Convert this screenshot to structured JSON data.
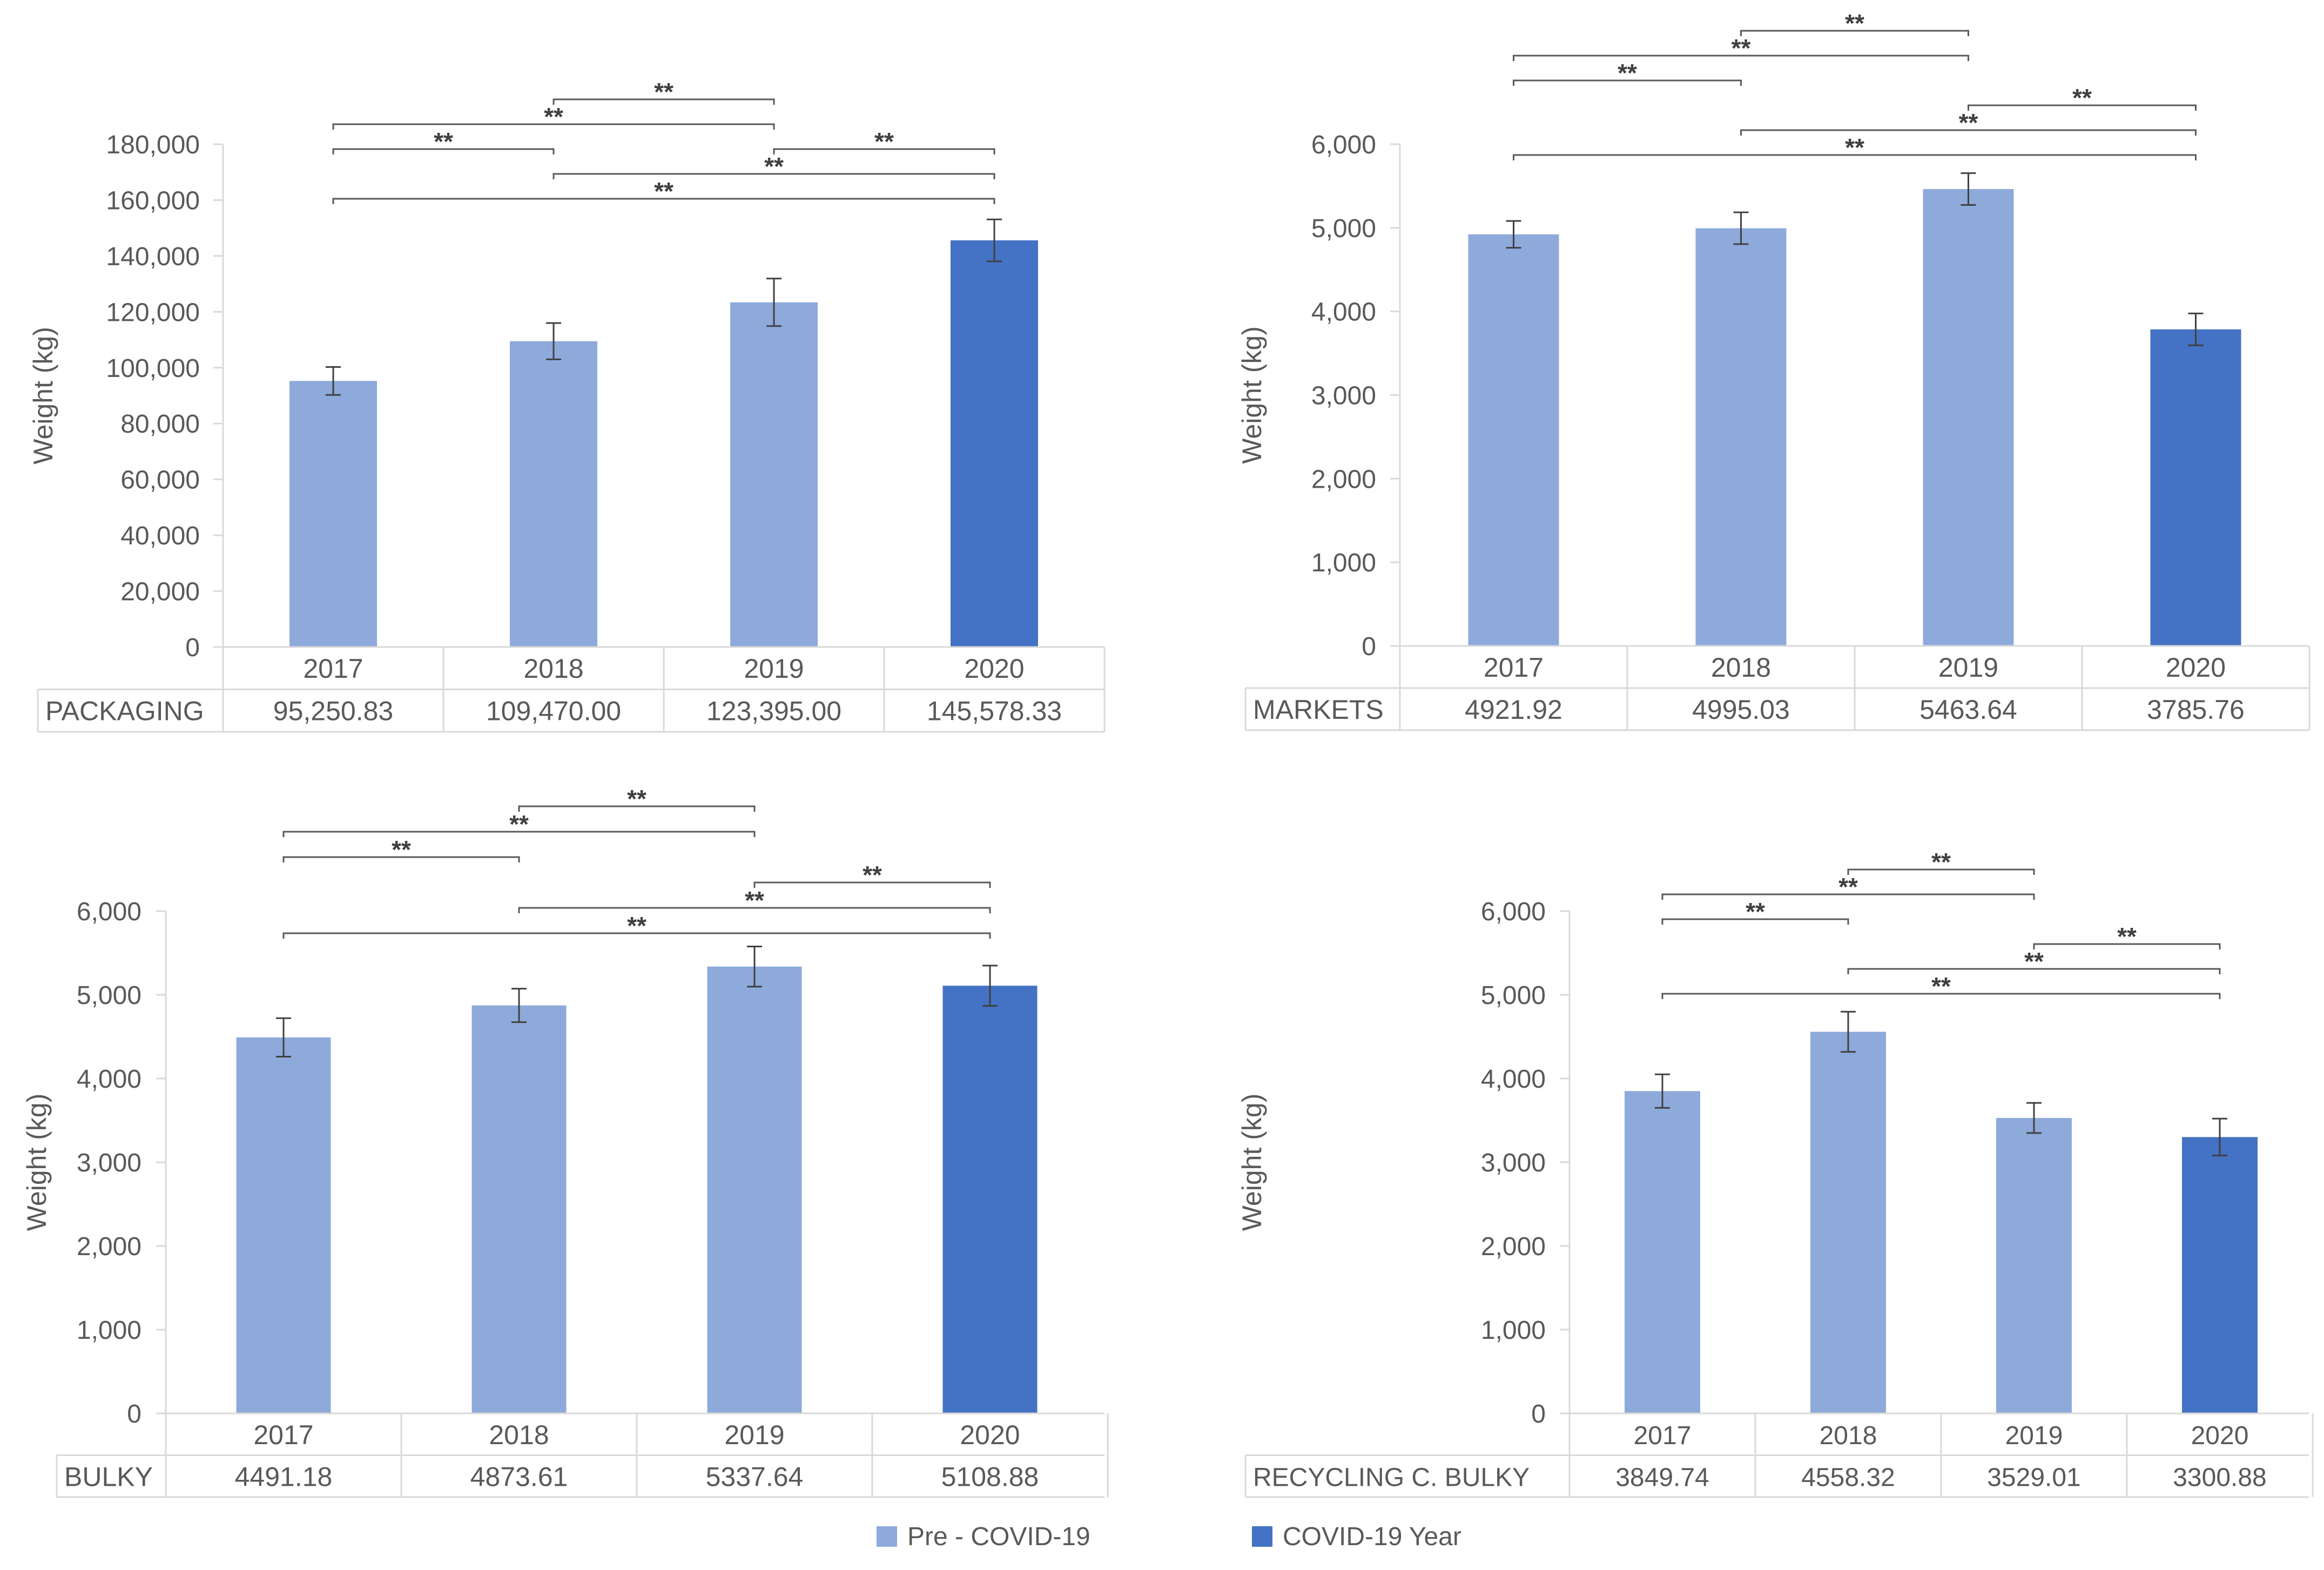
{
  "colors": {
    "pre": "#8eaadb",
    "covid": "#4472c4",
    "axis": "#d9d9d9",
    "text": "#595959",
    "bracket": "#595959"
  },
  "legend": [
    {
      "label": "Pre - COVID-19",
      "color": "#8eaadb"
    },
    {
      "label": "COVID-19 Year",
      "color": "#4472c4"
    }
  ],
  "chart_data": [
    {
      "type": "bar",
      "position": "top-left",
      "ylabel": "Weight (kg)",
      "ylim": [
        0,
        180000
      ],
      "yticks": [
        "0",
        "20,000",
        "40,000",
        "60,000",
        "80,000",
        "100,000",
        "120,000",
        "140,000",
        "160,000",
        "180,000"
      ],
      "categories": [
        "2017",
        "2018",
        "2019",
        "2020"
      ],
      "values": [
        95250.83,
        109470.0,
        123395.0,
        145578.33
      ],
      "errors": [
        5000,
        6500,
        8500,
        7500
      ],
      "covid": [
        false,
        false,
        false,
        true
      ],
      "table_label": "PACKAGING",
      "table_values": [
        "95,250.83",
        "109,470.00",
        "123,395.00",
        "145,578.33"
      ],
      "brackets": [
        {
          "from": 1,
          "to": 2,
          "level": 4,
          "label": "**"
        },
        {
          "from": 0,
          "to": 2,
          "level": 3,
          "label": "**"
        },
        {
          "from": 0,
          "to": 1,
          "level": 2,
          "label": "**"
        },
        {
          "from": 2,
          "to": 3,
          "level": 2,
          "label": "**"
        },
        {
          "from": 1,
          "to": 3,
          "level": 1,
          "label": "**"
        },
        {
          "from": 0,
          "to": 3,
          "level": 0,
          "label": "**"
        }
      ]
    },
    {
      "type": "bar",
      "position": "top-right",
      "ylabel": "Weight (kg)",
      "ylim": [
        0,
        6000
      ],
      "yticks": [
        "0",
        "1,000",
        "2,000",
        "3,000",
        "4,000",
        "5,000",
        "6,000"
      ],
      "categories": [
        "2017",
        "2018",
        "2019",
        "2020"
      ],
      "values": [
        4921.92,
        4995.03,
        5463.64,
        3785.76
      ],
      "errors": [
        160,
        190,
        190,
        190
      ],
      "covid": [
        false,
        false,
        false,
        true
      ],
      "table_label": "MARKETS",
      "table_values": [
        "4921.92",
        "4995.03",
        "5463.64",
        "3785.76"
      ],
      "brackets": [
        {
          "from": 1,
          "to": 2,
          "level": 5,
          "label": "**"
        },
        {
          "from": 0,
          "to": 2,
          "level": 4,
          "label": "**"
        },
        {
          "from": 0,
          "to": 1,
          "level": 3,
          "label": "**"
        },
        {
          "from": 2,
          "to": 3,
          "level": 2,
          "label": "**"
        },
        {
          "from": 1,
          "to": 3,
          "level": 1,
          "label": "**"
        },
        {
          "from": 0,
          "to": 3,
          "level": 0,
          "label": "**"
        }
      ]
    },
    {
      "type": "bar",
      "position": "bottom-left",
      "ylabel": "Weight (kg)",
      "ylim": [
        0,
        6000
      ],
      "yticks": [
        "0",
        "1,000",
        "2,000",
        "3,000",
        "4,000",
        "5,000",
        "6,000"
      ],
      "categories": [
        "2017",
        "2018",
        "2019",
        "2020"
      ],
      "values": [
        4491.18,
        4873.61,
        5337.64,
        5108.88
      ],
      "errors": [
        230,
        200,
        240,
        240
      ],
      "covid": [
        false,
        false,
        false,
        true
      ],
      "table_label": "BULKY",
      "table_values": [
        "4491.18",
        "4873.61",
        "5337.64",
        "5108.88"
      ],
      "brackets": [
        {
          "from": 1,
          "to": 2,
          "level": 5,
          "label": "**"
        },
        {
          "from": 0,
          "to": 2,
          "level": 4,
          "label": "**"
        },
        {
          "from": 0,
          "to": 1,
          "level": 3,
          "label": "**"
        },
        {
          "from": 2,
          "to": 3,
          "level": 2,
          "label": "**"
        },
        {
          "from": 1,
          "to": 3,
          "level": 1,
          "label": "**"
        },
        {
          "from": 0,
          "to": 3,
          "level": 0,
          "label": "**"
        }
      ]
    },
    {
      "type": "bar",
      "position": "bottom-right",
      "ylabel": "Weight (kg)",
      "ylim": [
        0,
        6000
      ],
      "yticks": [
        "0",
        "1,000",
        "2,000",
        "3,000",
        "4,000",
        "5,000",
        "6,000"
      ],
      "categories": [
        "2017",
        "2018",
        "2019",
        "2020"
      ],
      "values": [
        3849.74,
        4558.32,
        3529.01,
        3300.88
      ],
      "errors": [
        200,
        240,
        180,
        220
      ],
      "covid": [
        false,
        false,
        false,
        true
      ],
      "table_label": "RECYCLING C. BULKY",
      "table_values": [
        "3849.74",
        "4558.32",
        "3529.01",
        "3300.88"
      ],
      "brackets": [
        {
          "from": 1,
          "to": 2,
          "level": 5,
          "label": "**"
        },
        {
          "from": 0,
          "to": 2,
          "level": 4,
          "label": "**"
        },
        {
          "from": 0,
          "to": 1,
          "level": 3,
          "label": "**"
        },
        {
          "from": 2,
          "to": 3,
          "level": 2,
          "label": "**"
        },
        {
          "from": 1,
          "to": 3,
          "level": 1,
          "label": "**"
        },
        {
          "from": 0,
          "to": 3,
          "level": 0,
          "label": "**"
        }
      ]
    }
  ]
}
